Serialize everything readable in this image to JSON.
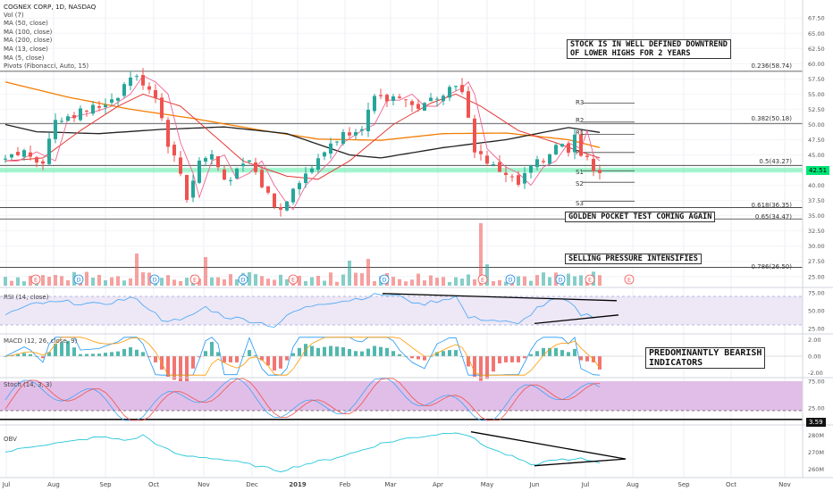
{
  "header": {
    "symbol_line": "COGNEX CORP, 1D, NASDAQ",
    "studies": [
      "Vol (7)",
      "MA (50, close)",
      "MA (100, close)",
      "MA (200, close)",
      "MA (13, close)",
      "MA (5, close)",
      "Pivots (Fibonacci, Auto, 15)"
    ]
  },
  "annotations": {
    "downtrend_line1": "STOCK IS IN WELL DEFINED DOWNTREND",
    "downtrend_line2": "OF LOWER HIGHS FOR 2 YEARS",
    "golden_pocket": "GOLDEN POCKET TEST COMING AGAIN",
    "selling_pressure": "SELLING PRESSURE INTENSIFIES",
    "bearish_line1": "PREDOMINANTLY BEARISH",
    "bearish_line2": "INDICATORS"
  },
  "pivots": {
    "r3": "R3",
    "r2": "R2",
    "r1": "R1",
    "p": "P",
    "s1": "S1",
    "s2": "S2",
    "s3": "S3"
  },
  "fib_levels": [
    {
      "label": "0.236(58.74)",
      "value": 58.74
    },
    {
      "label": "0.382(50.18)",
      "value": 50.18
    },
    {
      "label": "0.5(43.27)",
      "value": 43.27
    },
    {
      "label": "0.618(36.35)",
      "value": 36.35
    },
    {
      "label": "0.65(34.47)",
      "value": 34.47
    },
    {
      "label": "0.786(26.50)",
      "value": 26.5
    }
  ],
  "price_badge": "42.51",
  "panels": {
    "rsi_title": "RSI (14, close)",
    "macd_title": "MACD (12, 26, close, 9)",
    "stoch_title": "Stoch (14, 3, 3)",
    "obv_title": "OBV",
    "stoch_badge": "3.59"
  },
  "colors": {
    "up": "#26a69a",
    "down": "#ef5350",
    "ma50": "#e53935",
    "ma100": "#f57c00",
    "ma200": "#212121",
    "ma13": "#f06292",
    "rsi_bg": "#ede7f6",
    "stoch_bg": "#e1bee7",
    "highlight": "#00e676"
  },
  "chart_data": [
    {
      "type": "candlestick",
      "title": "COGNEX CORP, 1D, NASDAQ",
      "x_ticks": [
        "Jul",
        "Aug",
        "Sep",
        "Oct",
        "Nov",
        "Dec",
        "2019",
        "Feb",
        "Mar",
        "Apr",
        "May",
        "Jun",
        "Jul",
        "Aug",
        "Sep",
        "Oct",
        "Nov"
      ],
      "y_ticks": [
        25.0,
        27.5,
        30.0,
        32.5,
        35.0,
        37.5,
        40.0,
        42.5,
        45.0,
        47.5,
        50.0,
        52.5,
        55.0,
        57.5,
        60.0,
        62.5,
        65.0,
        67.5
      ],
      "ylim": [
        23.5,
        69.0
      ],
      "y_tick_labels": [
        "25.00",
        "27.50",
        "30.00",
        "32.50",
        "35.00",
        "37.50",
        "40.00",
        "42.50",
        "45.00",
        "47.50",
        "50.00",
        "52.50",
        "55.00",
        "57.50",
        "60.00",
        "62.50",
        "65.00",
        "67.50"
      ],
      "close_keypoints": [
        [
          0,
          44
        ],
        [
          3,
          45.5
        ],
        [
          6,
          44
        ],
        [
          8,
          51
        ],
        [
          12,
          52
        ],
        [
          15,
          53
        ],
        [
          18,
          55
        ],
        [
          20,
          58
        ],
        [
          22,
          57
        ],
        [
          24,
          55
        ],
        [
          26,
          47
        ],
        [
          28,
          42
        ],
        [
          29,
          38
        ],
        [
          31,
          44
        ],
        [
          33,
          45
        ],
        [
          35,
          41
        ],
        [
          37,
          42
        ],
        [
          39,
          44
        ],
        [
          41,
          40
        ],
        [
          43,
          37
        ],
        [
          44,
          36
        ],
        [
          46,
          40
        ],
        [
          48,
          42
        ],
        [
          50,
          44
        ],
        [
          52,
          47
        ],
        [
          55,
          49
        ],
        [
          57,
          50
        ],
        [
          59,
          54
        ],
        [
          61,
          54
        ],
        [
          63,
          55
        ],
        [
          65,
          53
        ],
        [
          67,
          53
        ],
        [
          69,
          55
        ],
        [
          71,
          56
        ],
        [
          72,
          57
        ],
        [
          73,
          55
        ],
        [
          75,
          46
        ],
        [
          76,
          45
        ],
        [
          78,
          43
        ],
        [
          80,
          42
        ],
        [
          82,
          40
        ],
        [
          84,
          43
        ],
        [
          86,
          44
        ],
        [
          88,
          47
        ],
        [
          90,
          46
        ],
        [
          91,
          49
        ],
        [
          92,
          45
        ],
        [
          94,
          43
        ],
        [
          95,
          42.5
        ]
      ],
      "ma200_keypoints": [
        [
          0,
          50
        ],
        [
          5,
          48.8
        ],
        [
          15,
          48.5
        ],
        [
          25,
          49.2
        ],
        [
          35,
          49.6
        ],
        [
          45,
          48.5
        ],
        [
          55,
          45
        ],
        [
          60,
          44.5
        ],
        [
          70,
          46.2
        ],
        [
          80,
          47.5
        ],
        [
          90,
          49.5
        ],
        [
          95,
          48.7
        ]
      ],
      "ma100_keypoints": [
        [
          0,
          57
        ],
        [
          10,
          54.5
        ],
        [
          20,
          52.5
        ],
        [
          30,
          51
        ],
        [
          40,
          49.2
        ],
        [
          50,
          47.6
        ],
        [
          60,
          47.4
        ],
        [
          70,
          48.5
        ],
        [
          80,
          48.6
        ],
        [
          90,
          47.5
        ],
        [
          95,
          46.2
        ]
      ],
      "ma50_keypoints": [
        [
          0,
          44
        ],
        [
          6,
          44.5
        ],
        [
          12,
          49
        ],
        [
          18,
          53
        ],
        [
          22,
          55
        ],
        [
          28,
          53
        ],
        [
          33,
          48.5
        ],
        [
          38,
          44
        ],
        [
          45,
          41.5
        ],
        [
          50,
          41
        ],
        [
          55,
          44
        ],
        [
          62,
          50
        ],
        [
          68,
          53.5
        ],
        [
          72,
          55
        ],
        [
          76,
          53
        ],
        [
          82,
          49
        ],
        [
          88,
          47
        ],
        [
          92,
          45.5
        ],
        [
          95,
          44.5
        ]
      ]
    },
    {
      "type": "bar",
      "title": "Vol (7)",
      "note": "volume bars, spikes near Oct, Feb and May"
    },
    {
      "type": "line",
      "title": "RSI (14, close)",
      "y_ticks": [
        25.0,
        50.0,
        75.0
      ],
      "y_tick_labels": [
        "25.00",
        "50.00",
        "75.00"
      ],
      "ylim": [
        20,
        80
      ],
      "bands": [
        30,
        70
      ],
      "keypoints": [
        [
          0,
          45
        ],
        [
          5,
          60
        ],
        [
          10,
          62
        ],
        [
          15,
          58
        ],
        [
          20,
          68
        ],
        [
          22,
          60
        ],
        [
          25,
          38
        ],
        [
          28,
          35
        ],
        [
          32,
          55
        ],
        [
          35,
          42
        ],
        [
          40,
          35
        ],
        [
          43,
          28
        ],
        [
          46,
          48
        ],
        [
          50,
          60
        ],
        [
          55,
          65
        ],
        [
          60,
          73
        ],
        [
          64,
          68
        ],
        [
          66,
          58
        ],
        [
          70,
          66
        ],
        [
          72,
          70
        ],
        [
          74,
          40
        ],
        [
          77,
          38
        ],
        [
          80,
          34
        ],
        [
          82,
          30
        ],
        [
          85,
          54
        ],
        [
          88,
          66
        ],
        [
          90,
          62
        ],
        [
          92,
          45
        ],
        [
          95,
          42
        ]
      ]
    },
    {
      "type": "bar",
      "title": "MACD (12, 26, close, 9)",
      "y_ticks": [
        -2.0,
        0.0,
        2.0
      ],
      "y_tick_labels": [
        "-2.00",
        "0.00",
        "2.00"
      ],
      "ylim": [
        -2.5,
        2.5
      ]
    },
    {
      "type": "line",
      "title": "Stoch (14, 3, 3)",
      "y_ticks": [
        25.0,
        75.0
      ],
      "y_tick_labels": [
        "25.00",
        "75.00"
      ],
      "ylim": [
        0,
        80
      ],
      "bands": [
        20,
        80
      ]
    },
    {
      "type": "line",
      "title": "OBV",
      "y_ticks": [
        260,
        270,
        280
      ],
      "y_tick_labels": [
        "260M",
        "270M",
        "280M"
      ],
      "ylim": [
        255,
        285
      ],
      "keypoints": [
        [
          0,
          270
        ],
        [
          5,
          274
        ],
        [
          10,
          276
        ],
        [
          15,
          279
        ],
        [
          20,
          277
        ],
        [
          22,
          280
        ],
        [
          25,
          273
        ],
        [
          28,
          268
        ],
        [
          32,
          267
        ],
        [
          36,
          265
        ],
        [
          40,
          262
        ],
        [
          44,
          259
        ],
        [
          48,
          263
        ],
        [
          52,
          266
        ],
        [
          56,
          270
        ],
        [
          60,
          275
        ],
        [
          64,
          278
        ],
        [
          68,
          280
        ],
        [
          72,
          282
        ],
        [
          74,
          280
        ],
        [
          76,
          275
        ],
        [
          79,
          270
        ],
        [
          82,
          266
        ],
        [
          84,
          262
        ],
        [
          86,
          264
        ],
        [
          88,
          266
        ],
        [
          90,
          265
        ],
        [
          92,
          266
        ],
        [
          95,
          264
        ]
      ]
    }
  ]
}
